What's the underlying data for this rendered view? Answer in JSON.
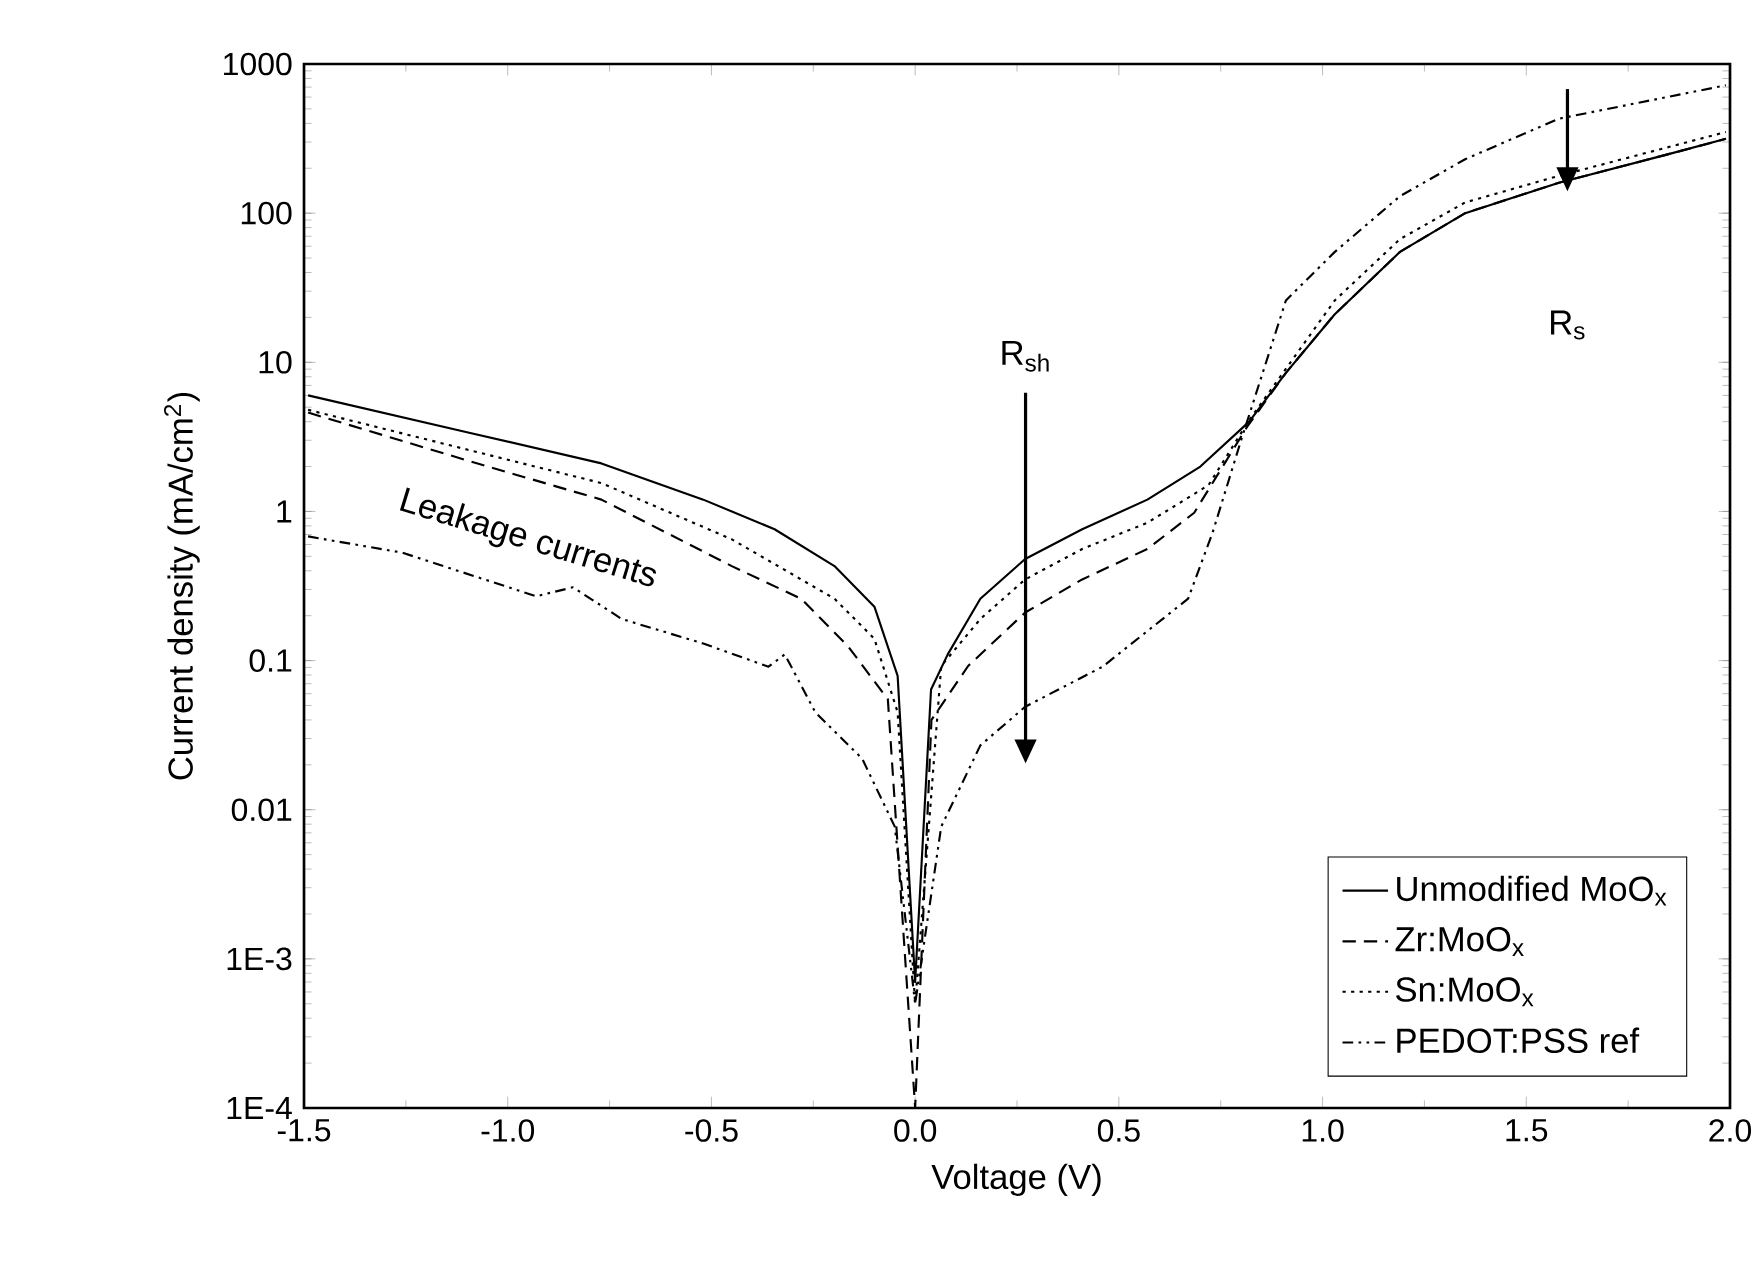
{
  "chart_data": {
    "type": "line",
    "xlabel": "Voltage (V)",
    "ylabel": "Current density (mA/cm$^{2}$)",
    "log": "y",
    "legend": "bottom right",
    "xlim": [
      -1.5,
      2.0
    ],
    "ylim": [
      0.0001,
      1000
    ],
    "xticks": [
      -1.5,
      {
        "value": -1.0,
        "label": "-1.0"
      },
      -0.5,
      {
        "value": 0.0,
        "label": "0.0"
      },
      0.5,
      {
        "value": 1.0,
        "label": "1.0"
      },
      1.5,
      {
        "value": 2.0,
        "label": "2.0"
      }
    ],
    "yticks": [
      {
        "value": 0.0001,
        "label": "1E-4"
      },
      {
        "value": 0.001,
        "label": "1E-3"
      },
      0.01,
      0.1,
      1,
      10,
      100,
      1000
    ],
    "annotations": [
      "R$_{sh}$",
      "R$_{s}$",
      "Leakage currents"
    ],
    "series": [
      {
        "name": "Unmodified MoO$_{x}$",
        "color": "#000000",
        "line_style": "solid",
        "x": [
          -1.49,
          -1.1,
          -0.77,
          -0.52,
          -0.345,
          -0.198,
          -0.1,
          -0.043,
          0.0,
          0.039,
          0.08,
          0.16,
          0.27,
          0.41,
          0.57,
          0.7,
          0.82,
          0.91,
          1.03,
          1.19,
          1.35,
          1.58,
          1.84,
          1.99
        ],
        "values": [
          6.0,
          3.4,
          2.1,
          1.2,
          0.76,
          0.43,
          0.23,
          0.079,
          0.0007,
          0.064,
          0.11,
          0.26,
          0.48,
          0.76,
          1.2,
          2.0,
          4.0,
          8.5,
          21,
          55,
          100,
          160,
          245,
          315
        ]
      },
      {
        "name": "Zr:MoO$_{x}$",
        "color": "#000000",
        "line_style": "dashed",
        "x": [
          -1.49,
          -1.1,
          -0.77,
          -0.45,
          -0.28,
          -0.165,
          -0.067,
          0.0,
          0.04,
          0.13,
          0.27,
          0.41,
          0.57,
          0.685,
          0.815,
          0.91,
          1.03,
          1.19,
          1.35,
          1.58,
          1.84,
          1.99
        ],
        "values": [
          4.6,
          2.2,
          1.2,
          0.43,
          0.26,
          0.125,
          0.055,
          0.0001,
          0.04,
          0.092,
          0.21,
          0.35,
          0.56,
          0.98,
          3.7,
          8.5,
          21,
          55,
          100,
          160,
          245,
          315
        ]
      },
      {
        "name": "Sn:MoO$_{x}$",
        "color": "#000000",
        "line_style": "dotted",
        "x": [
          -1.49,
          -1.1,
          -0.77,
          -0.45,
          -0.198,
          -0.1,
          -0.043,
          0.0,
          0.064,
          0.16,
          0.27,
          0.41,
          0.57,
          0.72,
          0.82,
          1.03,
          1.19,
          1.35,
          1.58,
          1.99
        ],
        "values": [
          4.8,
          2.6,
          1.55,
          0.65,
          0.26,
          0.14,
          0.045,
          0.0005,
          0.092,
          0.19,
          0.35,
          0.56,
          0.84,
          1.5,
          4.1,
          26,
          67,
          118,
          178,
          350
        ]
      },
      {
        "name": "PEDOT:PSS ref",
        "color": "#000000",
        "line_style": "dashdotdotted",
        "x": [
          -1.49,
          -1.26,
          -0.93,
          -0.84,
          -0.72,
          -0.52,
          -0.36,
          -0.32,
          -0.245,
          -0.13,
          -0.05,
          0.0,
          0.064,
          0.16,
          0.27,
          0.46,
          0.67,
          0.73,
          0.8,
          0.91,
          1.03,
          1.19,
          1.35,
          1.58,
          1.99
        ],
        "values": [
          0.68,
          0.53,
          0.27,
          0.31,
          0.19,
          0.13,
          0.091,
          0.11,
          0.045,
          0.022,
          0.0077,
          0.0005,
          0.0077,
          0.027,
          0.049,
          0.091,
          0.26,
          0.72,
          3.0,
          26,
          55,
          130,
          230,
          430,
          720
        ]
      }
    ]
  }
}
